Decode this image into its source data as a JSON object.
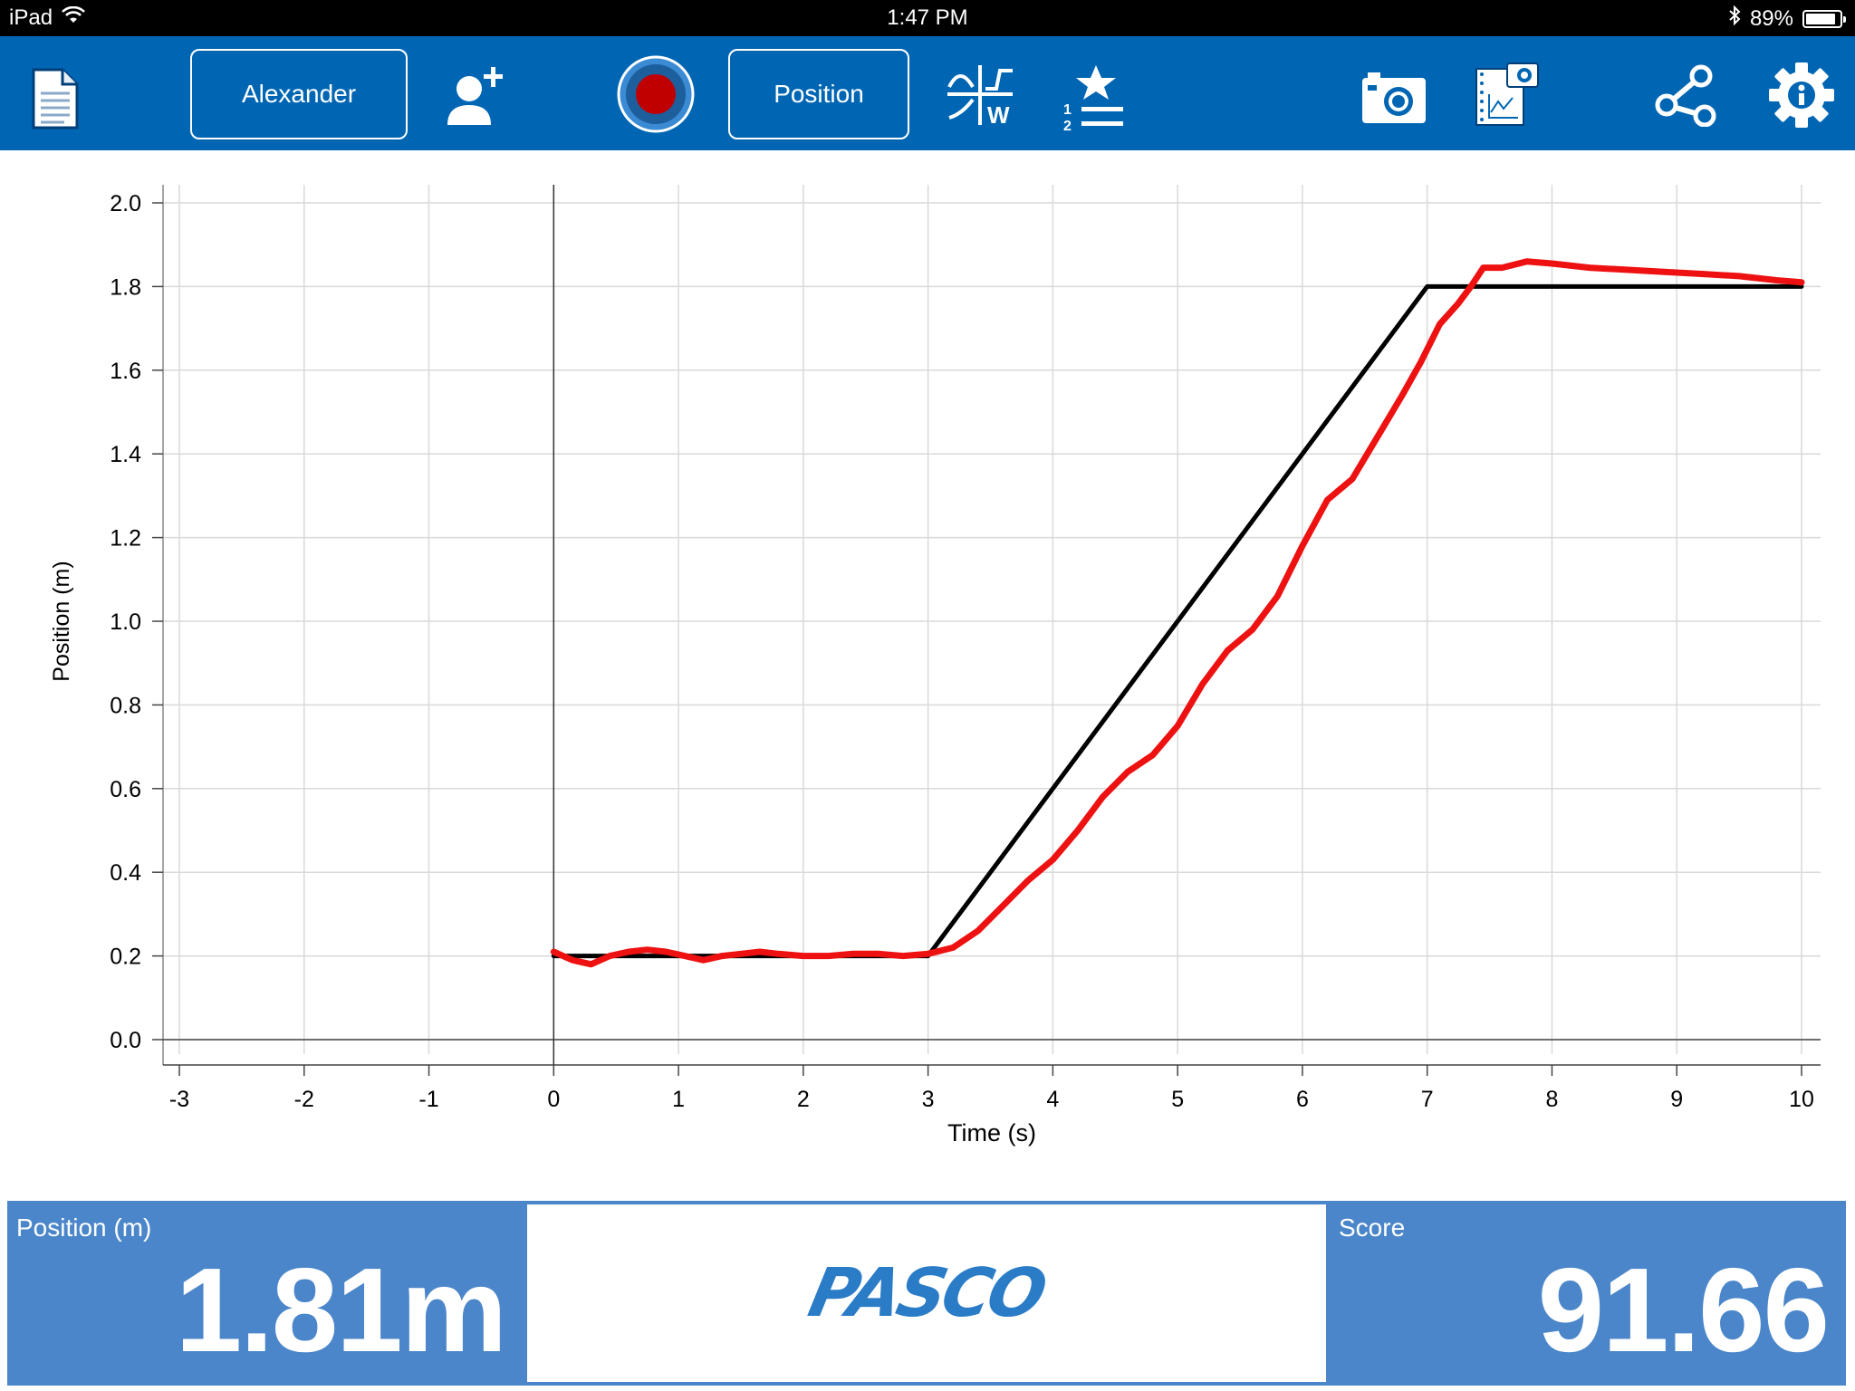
{
  "status_bar": {
    "device": "iPad",
    "time": "1:47 PM",
    "battery": "89%",
    "battery_level": 0.89,
    "icons": [
      "wifi-icon",
      "bluetooth-icon",
      "battery-icon"
    ]
  },
  "toolbar": {
    "user_label": "Alexander",
    "measurement_label": "Position",
    "icons": [
      "document-icon",
      "add-user-icon",
      "record-icon",
      "graph-match-icon",
      "score-list-icon",
      "camera-icon",
      "snapshot-icon",
      "share-icon",
      "settings-icon"
    ],
    "colors": {
      "background": "#0066b3",
      "record": "#c00000"
    }
  },
  "chart_data": {
    "type": "line",
    "xlabel": "Time (s)",
    "ylabel": "Position (m)",
    "xlim": [
      -3,
      10
    ],
    "ylim": [
      0,
      2.0
    ],
    "x_ticks": [
      -3,
      -2,
      -1,
      0,
      1,
      2,
      3,
      4,
      5,
      6,
      7,
      8,
      9,
      10
    ],
    "y_ticks": [
      "0.0",
      "0.2",
      "0.4",
      "0.6",
      "0.8",
      "1.0",
      "1.2",
      "1.4",
      "1.6",
      "1.8",
      "2.0"
    ],
    "grid": true,
    "series": [
      {
        "color": "#000000",
        "x": [
          0,
          3,
          7,
          10
        ],
        "y": [
          0.2,
          0.2,
          1.8,
          1.8
        ]
      },
      {
        "color": "#ee1111",
        "x": [
          0,
          0.15,
          0.3,
          0.45,
          0.6,
          0.75,
          0.9,
          1.05,
          1.2,
          1.35,
          1.5,
          1.65,
          1.8,
          2.0,
          2.2,
          2.4,
          2.6,
          2.8,
          3.0,
          3.2,
          3.4,
          3.6,
          3.8,
          4.0,
          4.2,
          4.4,
          4.6,
          4.8,
          5.0,
          5.2,
          5.4,
          5.6,
          5.8,
          6.0,
          6.2,
          6.4,
          6.6,
          6.8,
          6.95,
          7.1,
          7.25,
          7.35,
          7.45,
          7.6,
          7.8,
          8.0,
          8.3,
          8.6,
          8.9,
          9.2,
          9.5,
          9.8,
          10.0
        ],
        "y": [
          0.21,
          0.19,
          0.18,
          0.2,
          0.21,
          0.215,
          0.21,
          0.2,
          0.19,
          0.2,
          0.205,
          0.21,
          0.205,
          0.2,
          0.2,
          0.205,
          0.205,
          0.2,
          0.205,
          0.22,
          0.26,
          0.32,
          0.38,
          0.43,
          0.5,
          0.58,
          0.64,
          0.68,
          0.75,
          0.85,
          0.93,
          0.98,
          1.06,
          1.18,
          1.29,
          1.34,
          1.44,
          1.54,
          1.62,
          1.71,
          1.76,
          1.8,
          1.845,
          1.845,
          1.86,
          1.855,
          1.845,
          1.84,
          1.835,
          1.83,
          1.825,
          1.815,
          1.81
        ]
      }
    ]
  },
  "bottom": {
    "position_label": "Position (m)",
    "position_value": "1.81m",
    "logo_text": "PASCO",
    "score_label": "Score",
    "score_value": "91.66"
  }
}
